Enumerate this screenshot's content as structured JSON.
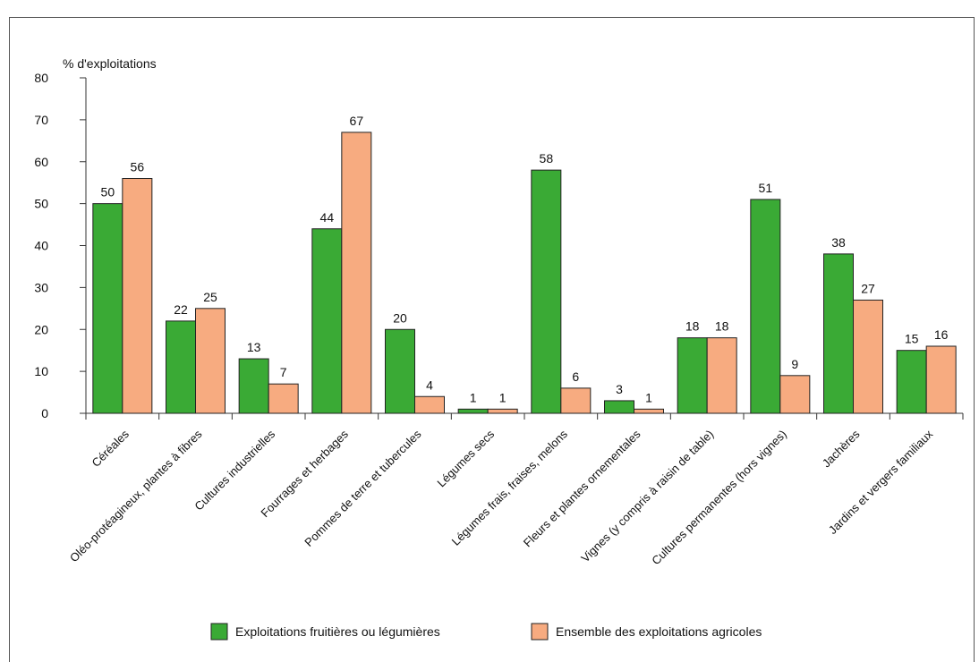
{
  "chart_data": {
    "type": "bar",
    "ylabel": "% d'exploitations",
    "ylim": [
      0,
      80
    ],
    "yticks": [
      0,
      10,
      20,
      30,
      40,
      50,
      60,
      70,
      80
    ],
    "grid": false,
    "legend_position": "bottom",
    "categories": [
      "Céréales",
      "Oléo-protéagineux, plantes à fibres",
      "Cultures industrielles",
      "Fourrages et herbages",
      "Pommes de terre et tubercules",
      "Légumes secs",
      "Légumes frais, fraises, melons",
      "Fleurs et plantes ornementales",
      "Vignes (y compris à raisin de table)",
      "Cultures permanentes (hors vignes)",
      "Jachères",
      "Jardins et vergers familiaux"
    ],
    "series": [
      {
        "name": "Exploitations fruitières ou légumières",
        "color": "#3aaa35",
        "values": [
          50,
          22,
          13,
          44,
          20,
          1,
          58,
          3,
          18,
          51,
          38,
          15
        ]
      },
      {
        "name": "Ensemble des exploitations agricoles",
        "color": "#f7ab80",
        "values": [
          56,
          25,
          7,
          67,
          4,
          1,
          6,
          1,
          18,
          9,
          27,
          16
        ]
      }
    ]
  }
}
